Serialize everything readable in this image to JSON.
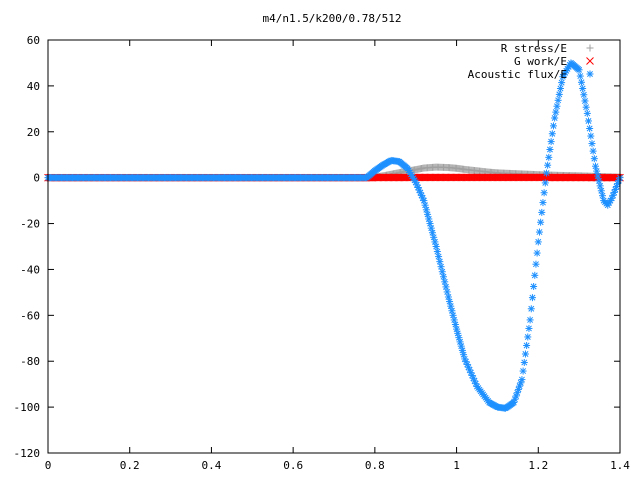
{
  "chart_data": {
    "type": "scatter",
    "title": "m4/n1.5/k200/0.78/512",
    "xlabel": "",
    "ylabel": "",
    "xlim": [
      0,
      1.4
    ],
    "ylim": [
      -120,
      60
    ],
    "xticks": [
      0,
      0.2,
      0.4,
      0.6,
      0.8,
      1,
      1.2,
      1.4
    ],
    "xtick_labels": [
      "0",
      "0.2",
      "0.4",
      "0.6",
      "0.8",
      "1",
      "1.2",
      "1.4"
    ],
    "yticks": [
      -120,
      -100,
      -80,
      -60,
      -40,
      -20,
      0,
      20,
      40,
      60
    ],
    "ytick_labels": [
      "-120",
      "-100",
      "-80",
      "-60",
      "-40",
      "-20",
      "0",
      "20",
      "40",
      "60"
    ],
    "grid": false,
    "legend_position": "top-right",
    "series": [
      {
        "name": "R stress/E",
        "marker": "+",
        "color": "#a0a0a0",
        "points": [
          [
            0,
            0
          ],
          [
            0.78,
            0
          ],
          [
            0.8,
            0.3
          ],
          [
            0.82,
            0.8
          ],
          [
            0.84,
            1.5
          ],
          [
            0.86,
            2.2
          ],
          [
            0.88,
            2.9
          ],
          [
            0.9,
            3.5
          ],
          [
            0.92,
            4.2
          ],
          [
            0.95,
            4.6
          ],
          [
            0.98,
            4.4
          ],
          [
            1.0,
            4.1
          ],
          [
            1.02,
            3.6
          ],
          [
            1.05,
            3.0
          ],
          [
            1.08,
            2.4
          ],
          [
            1.1,
            2.1
          ],
          [
            1.15,
            1.7
          ],
          [
            1.2,
            1.3
          ],
          [
            1.25,
            1.0
          ],
          [
            1.3,
            0.8
          ],
          [
            1.35,
            0.5
          ],
          [
            1.4,
            0.2
          ]
        ]
      },
      {
        "name": "G work/E",
        "marker": "x",
        "color": "#ff0000",
        "points": [
          [
            0,
            0
          ],
          [
            0.78,
            0
          ],
          [
            0.8,
            0.05
          ],
          [
            0.9,
            0.1
          ],
          [
            1.0,
            0.1
          ],
          [
            1.1,
            0.1
          ],
          [
            1.2,
            0.1
          ],
          [
            1.3,
            0.05
          ],
          [
            1.4,
            0
          ]
        ]
      },
      {
        "name": "Acoustic flux/E",
        "marker": "*",
        "color": "#1e90ff",
        "points": [
          [
            0,
            0
          ],
          [
            0.78,
            0
          ],
          [
            0.8,
            3
          ],
          [
            0.82,
            5.5
          ],
          [
            0.84,
            7.5
          ],
          [
            0.86,
            7.0
          ],
          [
            0.88,
            4
          ],
          [
            0.9,
            -2
          ],
          [
            0.92,
            -10
          ],
          [
            0.95,
            -30
          ],
          [
            0.98,
            -52
          ],
          [
            1.0,
            -66
          ],
          [
            1.02,
            -79
          ],
          [
            1.05,
            -91
          ],
          [
            1.08,
            -98
          ],
          [
            1.1,
            -100
          ],
          [
            1.12,
            -100.5
          ],
          [
            1.14,
            -98
          ],
          [
            1.16,
            -88
          ],
          [
            1.18,
            -62
          ],
          [
            1.2,
            -28
          ],
          [
            1.22,
            2
          ],
          [
            1.24,
            26
          ],
          [
            1.26,
            44
          ],
          [
            1.28,
            50
          ],
          [
            1.3,
            47
          ],
          [
            1.32,
            28
          ],
          [
            1.34,
            5
          ],
          [
            1.36,
            -10
          ],
          [
            1.37,
            -12
          ],
          [
            1.38,
            -9
          ],
          [
            1.4,
            0
          ]
        ]
      }
    ]
  }
}
